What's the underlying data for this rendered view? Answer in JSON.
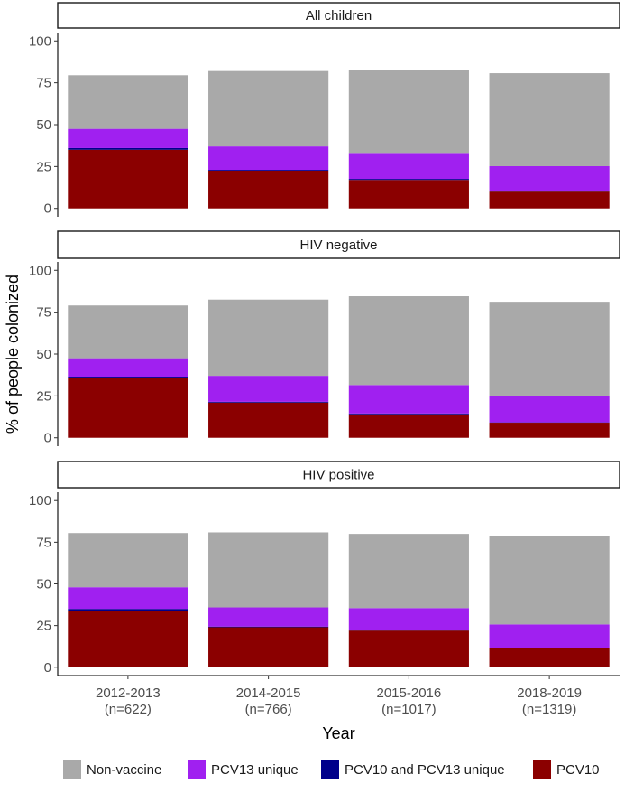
{
  "chart_data": {
    "type": "bar",
    "stacked": true,
    "xlabel": "Year",
    "ylabel": "% of people colonized",
    "ylim": [
      0,
      100
    ],
    "yticks": [
      0,
      25,
      50,
      75,
      100
    ],
    "categories": [
      "2012-2013",
      "2014-2015",
      "2015-2016",
      "2018-2019"
    ],
    "category_n": [
      "(n=622)",
      "(n=766)",
      "(n=1017)",
      "(n=1319)"
    ],
    "series_order": [
      "PCV10",
      "PCV10 and PCV13 unique",
      "PCV13 unique",
      "Non-vaccine"
    ],
    "colors": {
      "PCV10": "#8b0000",
      "PCV10 and PCV13 unique": "#00008b",
      "PCV13 unique": "#a020f0",
      "Non-vaccine": "#a9a9a9"
    },
    "legend": {
      "position": "bottom",
      "entries": [
        "Non-vaccine",
        "PCV13 unique",
        "PCV10 and PCV13 unique",
        "PCV10"
      ]
    },
    "panels": [
      {
        "title": "All children",
        "series": [
          {
            "name": "PCV10",
            "values": [
              35,
              22.5,
              17,
              10
            ]
          },
          {
            "name": "PCV10 and PCV13 unique",
            "values": [
              1,
              0.5,
              0.6,
              0.2
            ]
          },
          {
            "name": "PCV13 unique",
            "values": [
              11.5,
              14,
              15.5,
              15
            ]
          },
          {
            "name": "Non-vaccine",
            "values": [
              32,
              45,
              49.5,
              55.5
            ]
          }
        ]
      },
      {
        "title": "HIV negative",
        "series": [
          {
            "name": "PCV10",
            "values": [
              35.5,
              21,
              14,
              9
            ]
          },
          {
            "name": "PCV10 and PCV13 unique",
            "values": [
              1,
              0.5,
              0.5,
              0.2
            ]
          },
          {
            "name": "PCV13 unique",
            "values": [
              11,
              15.5,
              17,
              16
            ]
          },
          {
            "name": "Non-vaccine",
            "values": [
              31.5,
              45.5,
              53,
              56
            ]
          }
        ]
      },
      {
        "title": "HIV positive",
        "series": [
          {
            "name": "PCV10",
            "values": [
              34,
              24,
              22,
              11.5
            ]
          },
          {
            "name": "PCV10 and PCV13 unique",
            "values": [
              1,
              0.4,
              0.5,
              0.2
            ]
          },
          {
            "name": "PCV13 unique",
            "values": [
              13,
              11.5,
              13,
              14
            ]
          },
          {
            "name": "Non-vaccine",
            "values": [
              32.5,
              45,
              44.5,
              53
            ]
          }
        ]
      }
    ]
  }
}
